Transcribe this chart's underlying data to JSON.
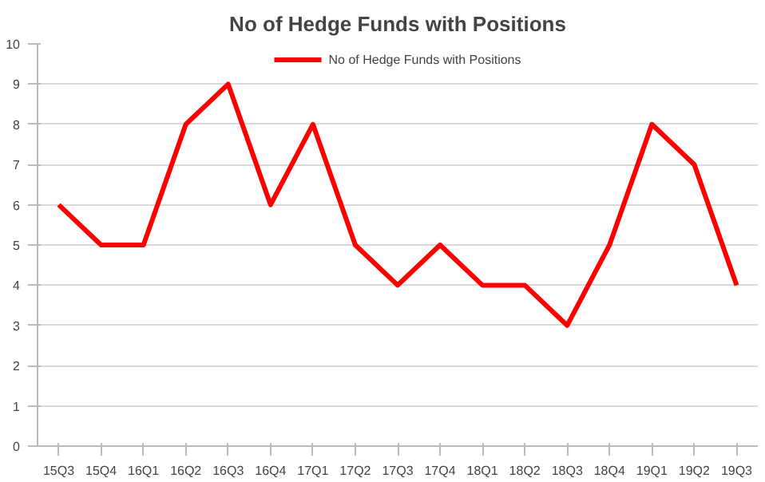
{
  "chart_data": {
    "type": "line",
    "title": "No of Hedge Funds with Positions",
    "categories": [
      "15Q3",
      "15Q4",
      "16Q1",
      "16Q2",
      "16Q3",
      "16Q4",
      "17Q1",
      "17Q2",
      "17Q3",
      "17Q4",
      "18Q1",
      "18Q2",
      "18Q3",
      "18Q4",
      "19Q1",
      "19Q2",
      "19Q3"
    ],
    "series": [
      {
        "name": "No of Hedge Funds with Positions",
        "color": "#ff0000",
        "values": [
          6,
          5,
          5,
          8,
          9,
          6,
          8,
          5,
          4,
          5,
          4,
          4,
          3,
          5,
          8,
          7,
          4
        ]
      }
    ],
    "ylim": [
      0,
      10
    ],
    "yticks": [
      0,
      1,
      2,
      3,
      4,
      5,
      6,
      7,
      8,
      9,
      10
    ],
    "grid": "y",
    "legend": "top",
    "marker": "none",
    "line_style": "solid"
  }
}
